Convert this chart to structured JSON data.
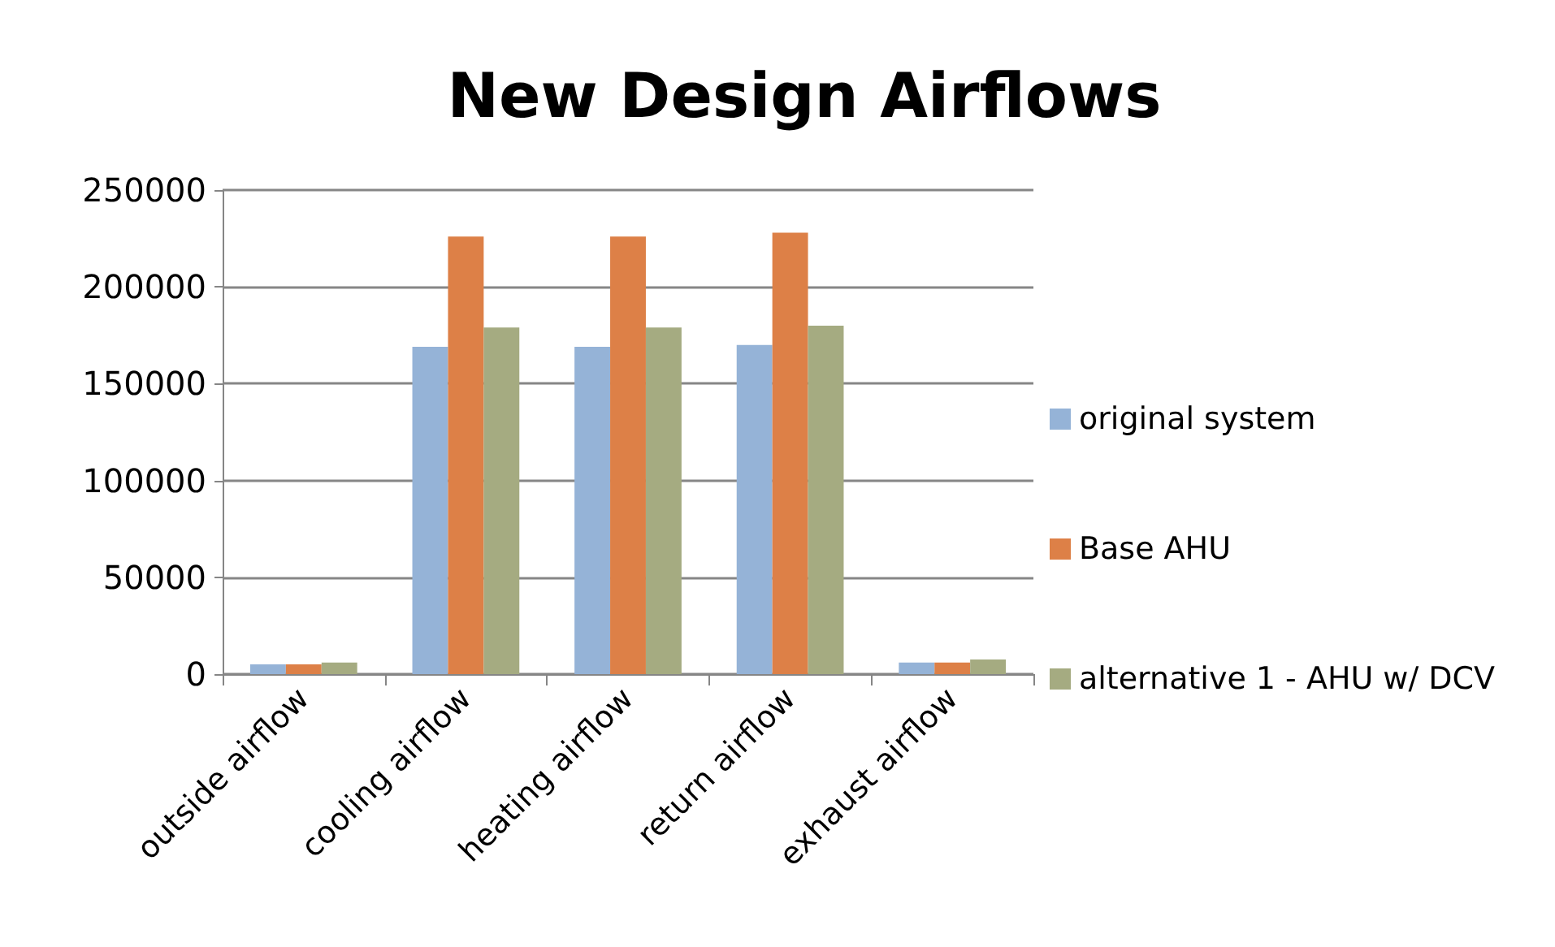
{
  "chart_data": {
    "type": "bar",
    "title": "New Design Airflows",
    "categories": [
      "outside airflow",
      "cooling airflow",
      "heating airflow",
      "return airflow",
      "exhaust airflow"
    ],
    "series": [
      {
        "name": "original system",
        "color": "#95b3d7",
        "values": [
          5000,
          169000,
          169000,
          170000,
          6000
        ]
      },
      {
        "name": "Base AHU",
        "color": "#dd8047",
        "values": [
          5000,
          226000,
          226000,
          228000,
          6000
        ]
      },
      {
        "name": "alternative 1 - AHU w/ DCV",
        "color": "#a5ab81",
        "values": [
          6000,
          179000,
          179000,
          180000,
          7500
        ]
      }
    ],
    "ylim": [
      0,
      250000
    ],
    "yticks": [
      0,
      50000,
      100000,
      150000,
      200000,
      250000
    ],
    "grid": "y",
    "legend": "right"
  }
}
